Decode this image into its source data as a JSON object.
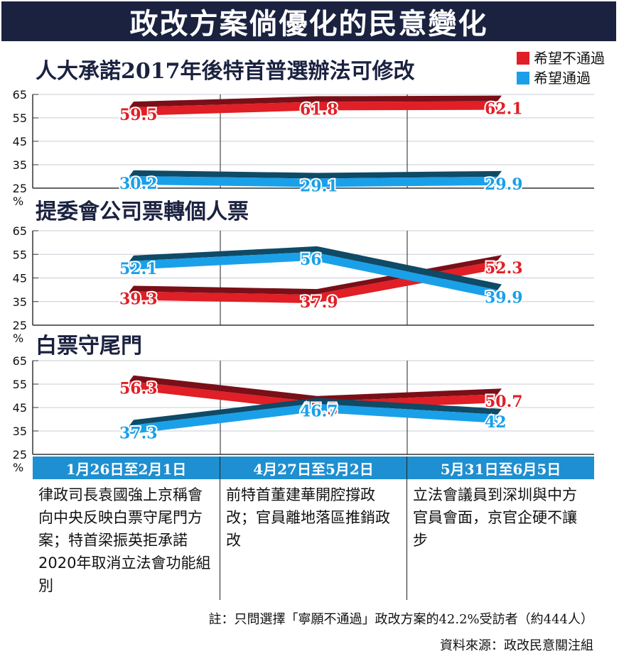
{
  "title": "政改方案倘優化的民意變化",
  "legend": [
    {
      "label": "希望不通過",
      "color": "#e01f26"
    },
    {
      "label": "希望通過",
      "color": "#1aa0e8"
    }
  ],
  "chart_data": [
    {
      "type": "line",
      "title": "人大承諾2017年後特首普選辦法可修改",
      "ylim": [
        25,
        65
      ],
      "yticks": [
        "65",
        "55",
        "45",
        "35",
        "25"
      ],
      "yunit": "%",
      "series": [
        {
          "name": "希望不通過",
          "values": [
            59.5,
            61.8,
            62.1
          ],
          "labels": [
            "59.5",
            "61.8",
            "62.1"
          ]
        },
        {
          "name": "希望通過",
          "values": [
            30.2,
            29.1,
            29.9
          ],
          "labels": [
            "30.2",
            "29.1",
            "29.9"
          ]
        }
      ]
    },
    {
      "type": "line",
      "title": "提委會公司票轉個人票",
      "ylim": [
        25,
        65
      ],
      "yticks": [
        "65",
        "55",
        "45",
        "35",
        "25"
      ],
      "yunit": "%",
      "series": [
        {
          "name": "希望不通過",
          "values": [
            39.3,
            37.9,
            52.3
          ],
          "labels": [
            "39.3",
            "37.9",
            "52.3"
          ]
        },
        {
          "name": "希望通過",
          "values": [
            52.1,
            56,
            39.9
          ],
          "labels": [
            "52.1",
            "56",
            "39.9"
          ]
        }
      ]
    },
    {
      "type": "line",
      "title": "白票守尾門",
      "ylim": [
        25,
        65
      ],
      "yticks": [
        "65",
        "55",
        "45",
        "35",
        "25"
      ],
      "yunit": "%",
      "series": [
        {
          "name": "希望不通過",
          "values": [
            56.3,
            47.5,
            50.7
          ],
          "labels": [
            "56.3",
            "47.5",
            "50.7"
          ]
        },
        {
          "name": "希望通過",
          "values": [
            37.3,
            46.7,
            42
          ],
          "labels": [
            "37.3",
            "46.7",
            "42"
          ]
        }
      ]
    }
  ],
  "periods": [
    {
      "date": "1月26日至2月1日",
      "text": "律政司長袁國強上京稱會向中央反映白票守尾門方案；特首梁振英拒承諾2020年取消立法會功能組別"
    },
    {
      "date": "4月27日至5月2日",
      "text": "前特首董建華開腔撐政改；官員離地落區推銷政改"
    },
    {
      "date": "5月31日至6月5日",
      "text": "立法會議員到深圳與中方官員會面，京官企硬不讓步"
    }
  ],
  "note": "註：只問選擇「寧願不通過」政改方案的42.2%受訪者（約444人）",
  "source": "資料來源：政改民意關注組"
}
